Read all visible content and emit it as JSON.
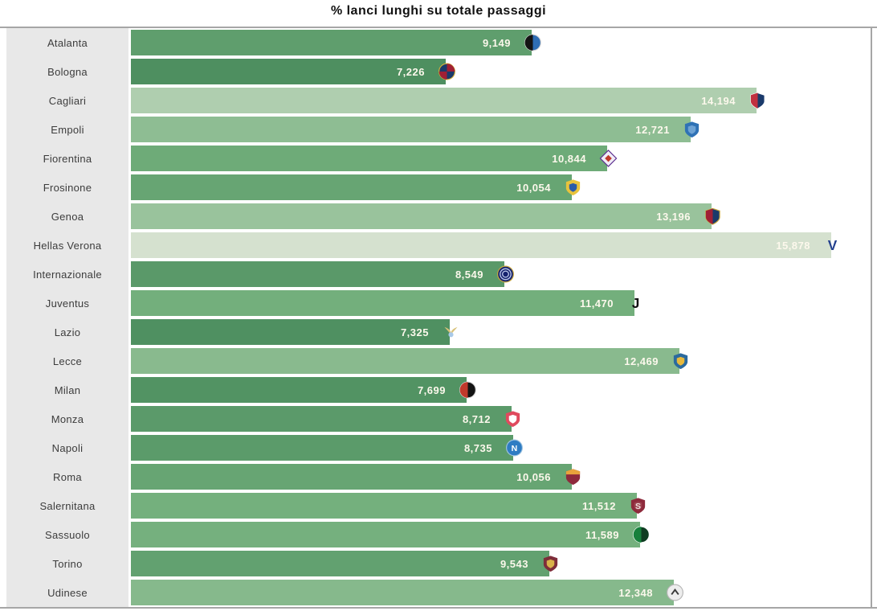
{
  "title": "% lanci lunghi su totale passaggi",
  "colors": {
    "title_color": "#111111",
    "frame_line": "#a6a6a6",
    "category_panel_bg": "#e8e8e8",
    "value_text": "#fcf8ec",
    "bar_color_scale": {
      "low": "#4e8f60",
      "mid": "#74b07d",
      "high": "#d5e1cf"
    }
  },
  "chart_data": {
    "type": "bar",
    "orientation": "horizontal",
    "title": "% lanci lunghi su totale passaggi",
    "xlabel": "",
    "ylabel": "",
    "grid": false,
    "legend": false,
    "x_axis_visible": false,
    "xlim": [
      0,
      16.6
    ],
    "categories": [
      "Atalanta",
      "Bologna",
      "Cagliari",
      "Empoli",
      "Fiorentina",
      "Frosinone",
      "Genoa",
      "Hellas Verona",
      "Internazionale",
      "Juventus",
      "Lazio",
      "Lecce",
      "Milan",
      "Monza",
      "Napoli",
      "Roma",
      "Salernitana",
      "Sassuolo",
      "Torino",
      "Udinese"
    ],
    "values": [
      9.149,
      7.226,
      14.194,
      12.721,
      10.844,
      10.054,
      13.196,
      15.878,
      8.549,
      11.47,
      7.325,
      12.469,
      7.699,
      8.712,
      8.735,
      10.056,
      11.512,
      11.589,
      9.543,
      12.348
    ],
    "value_labels": [
      "9,149",
      "7,226",
      "14,194",
      "12,721",
      "10,844",
      "10,054",
      "13,196",
      "15,878",
      "8,549",
      "11,470",
      "7,325",
      "12,469",
      "7,699",
      "8,712",
      "8,735",
      "10,056",
      "11,512",
      "11,589",
      "9,543",
      "12,348"
    ],
    "color_rule": "lower value = darker green, higher value = lighter green"
  },
  "team_logos": [
    {
      "name": "atalanta",
      "shape": "circle2",
      "c1": "#141414",
      "c2": "#2e6db4",
      "stroke": "#d8d8d8"
    },
    {
      "name": "bologna",
      "shape": "circle4",
      "c1": "#1a3a6b",
      "c2": "#a02035",
      "stroke": "#d4af37"
    },
    {
      "name": "cagliari",
      "shape": "shield2",
      "c1": "#c03040",
      "c2": "#1a3a6b",
      "stroke": "#ffffff"
    },
    {
      "name": "empoli",
      "shape": "shield",
      "c1": "#2f72b5",
      "c2": "#6ea3d4"
    },
    {
      "name": "fiorentina",
      "shape": "diamond",
      "c1": "#f0ecf7",
      "c2": "#c0392b",
      "stroke": "#5b2d8e"
    },
    {
      "name": "frosinone",
      "shape": "shield",
      "c1": "#e8c33c",
      "c2": "#2b5ca8"
    },
    {
      "name": "genoa",
      "shape": "shield2",
      "c1": "#a02035",
      "c2": "#1a3a6b",
      "stroke": "#caa83c"
    },
    {
      "name": "hellas-verona",
      "shape": "text",
      "text": "V",
      "tc": "#24418e",
      "ts": 18
    },
    {
      "name": "internazionale",
      "shape": "circle-ring",
      "c1": "#16226e",
      "c2": "#b8c4e8",
      "stroke": "#caa83c"
    },
    {
      "name": "juventus",
      "shape": "text",
      "text": "J",
      "tc": "#111111",
      "ts": 18
    },
    {
      "name": "lazio",
      "shape": "wings",
      "c1": "#d9c27a",
      "c2": "#a9c9e8"
    },
    {
      "name": "lecce",
      "shape": "shield",
      "c1": "#2b6a9e",
      "c2": "#e8b93c"
    },
    {
      "name": "milan",
      "shape": "circle2",
      "c1": "#c0392b",
      "c2": "#141414",
      "stroke": "#d8d8d8"
    },
    {
      "name": "monza",
      "shape": "shield",
      "c1": "#e04a5e",
      "c2": "#ffffff"
    },
    {
      "name": "napoli",
      "shape": "circle-text",
      "c1": "#2e7cc3",
      "stroke": "#9fc3e0",
      "text": "N",
      "tc": "#ffffff",
      "ts": 11
    },
    {
      "name": "roma",
      "shape": "shield-h",
      "c1": "#8e2a3c",
      "c2": "#e8a33c"
    },
    {
      "name": "salernitana",
      "shape": "shield",
      "c1": "#8e2a3c",
      "c2": "#9e4350",
      "text": "S",
      "tc": "#f0e0e0",
      "ts": 11
    },
    {
      "name": "sassuolo",
      "shape": "circle2",
      "c1": "#17803c",
      "c2": "#0f3d22",
      "stroke": "#ffffff"
    },
    {
      "name": "torino",
      "shape": "shield",
      "c1": "#7e2d3a",
      "c2": "#d9b24a"
    },
    {
      "name": "udinese",
      "shape": "circle-chev",
      "c1": "#ededed",
      "c2": "#3a3a3a",
      "stroke": "#b5b5b5"
    }
  ]
}
